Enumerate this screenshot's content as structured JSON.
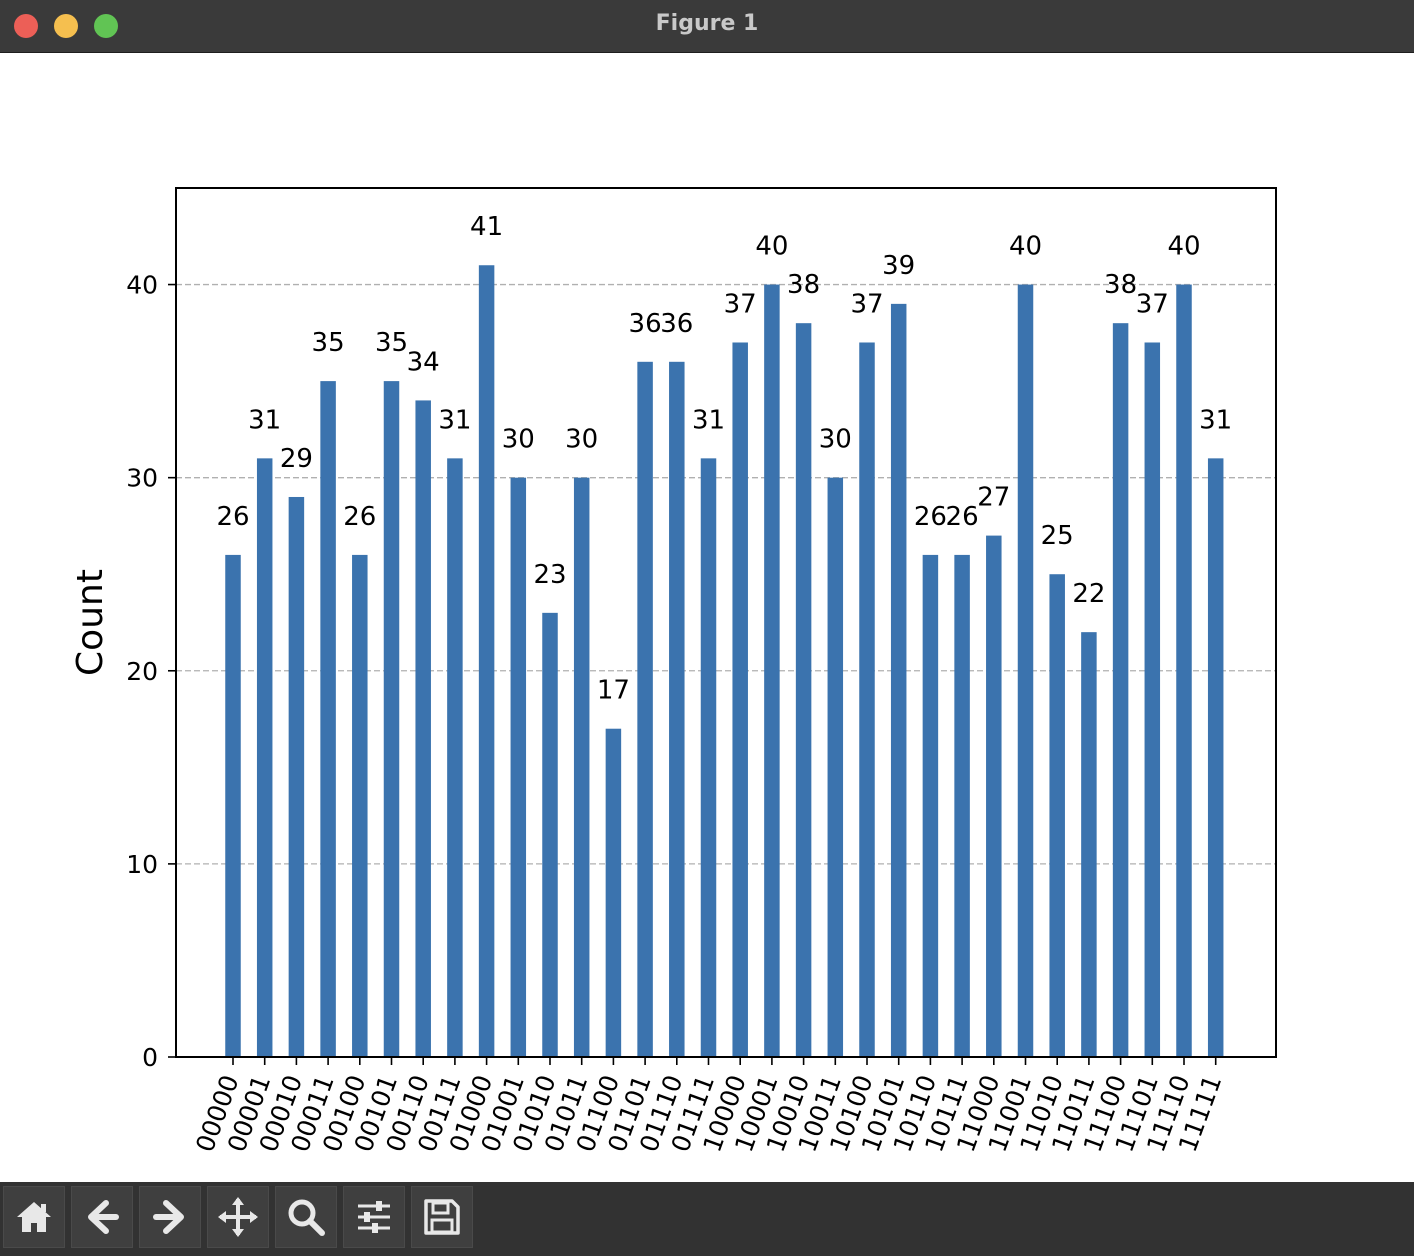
{
  "window": {
    "title": "Figure 1"
  },
  "toolbar": {
    "buttons": [
      {
        "name": "home",
        "icon": "home-icon"
      },
      {
        "name": "back",
        "icon": "arrow-left-icon"
      },
      {
        "name": "forward",
        "icon": "arrow-right-icon"
      },
      {
        "name": "pan",
        "icon": "move-icon"
      },
      {
        "name": "zoom",
        "icon": "magnifier-icon"
      },
      {
        "name": "configure-subplots",
        "icon": "sliders-icon"
      },
      {
        "name": "save",
        "icon": "floppy-disk-icon"
      }
    ]
  },
  "chart_data": {
    "type": "bar",
    "categories": [
      "00000",
      "00001",
      "00010",
      "00011",
      "00100",
      "00101",
      "00110",
      "00111",
      "01000",
      "01001",
      "01010",
      "01011",
      "01100",
      "01101",
      "01110",
      "01111",
      "10000",
      "10001",
      "10010",
      "10011",
      "10100",
      "10101",
      "10110",
      "10111",
      "11000",
      "11001",
      "11010",
      "11011",
      "11100",
      "11101",
      "11110",
      "11111"
    ],
    "values": [
      26,
      31,
      29,
      35,
      26,
      35,
      34,
      31,
      41,
      30,
      23,
      30,
      17,
      36,
      36,
      31,
      37,
      40,
      38,
      30,
      37,
      39,
      26,
      26,
      27,
      40,
      25,
      22,
      38,
      37,
      40,
      31
    ],
    "ylabel": "Count",
    "xlabel": "",
    "ylim": [
      0,
      45
    ],
    "yticks": [
      0,
      10,
      20,
      30,
      40
    ],
    "grid": "horizontal dashed",
    "bar_color": "#3b73ae",
    "data_labels": true,
    "xtick_rotation": 70
  }
}
